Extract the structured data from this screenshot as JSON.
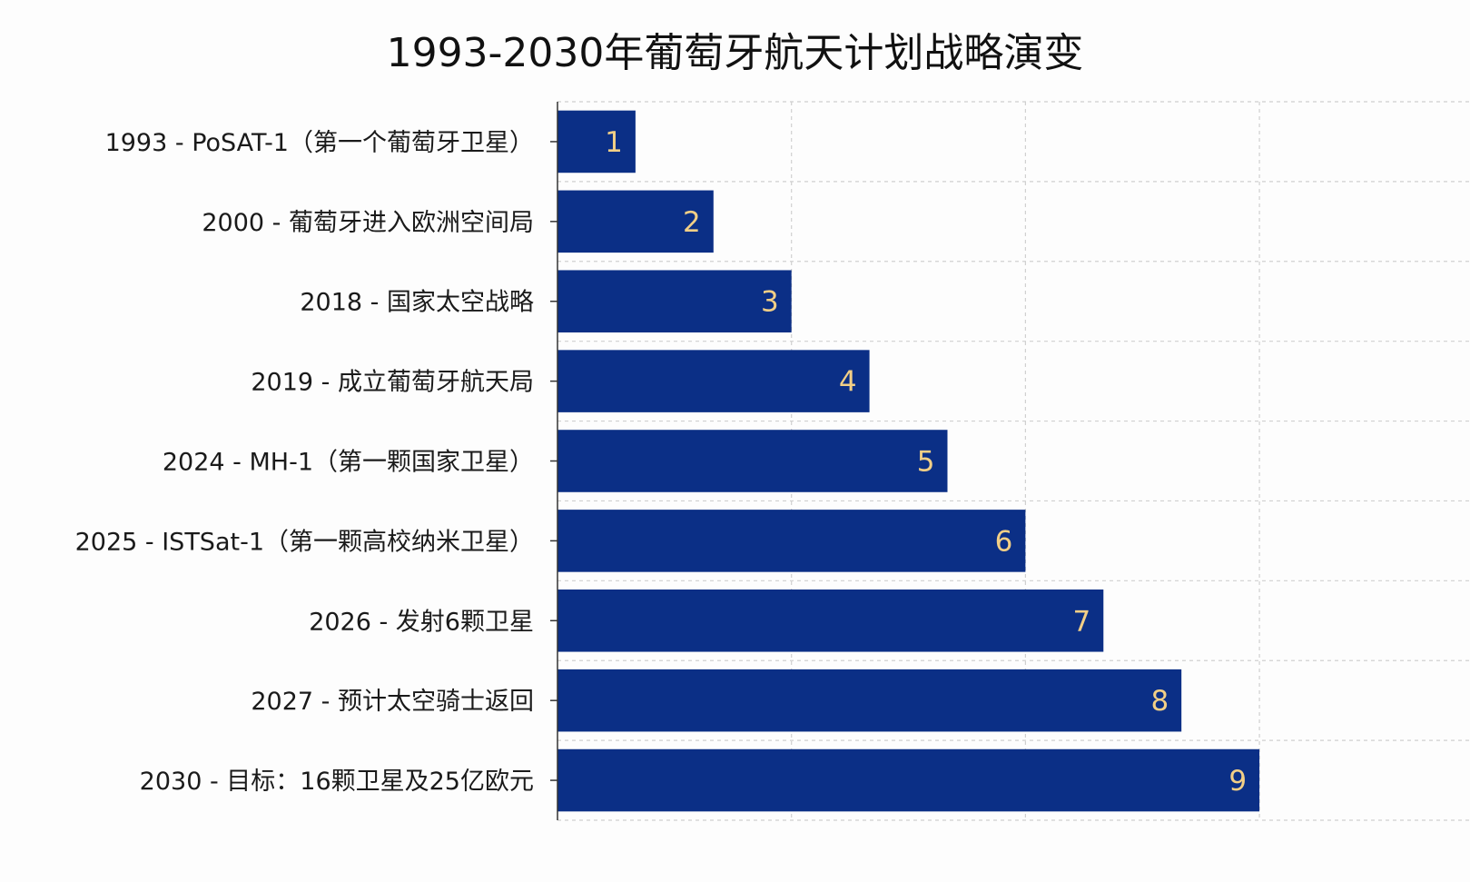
{
  "title": "1993-2030年葡萄牙航天计划战略演变",
  "chart_data": {
    "type": "bar",
    "orientation": "horizontal",
    "title": "1993-2030年葡萄牙航天计划战略演变",
    "xlabel": "",
    "ylabel": "",
    "categories": [
      "1993 - PoSAT-1（第一个葡萄牙卫星）",
      "2000 - 葡萄牙进入欧洲空间局",
      "2018 - 国家太空战略",
      "2019 - 成立葡萄牙航天局",
      "2024 - MH-1（第一颗国家卫星）",
      "2025 - ISTSat-1（第一颗高校纳米卫星）",
      "2026 - 发射6颗卫星",
      "2027 - 预计太空骑士返回",
      "2030 - 目标：16颗卫星及25亿欧元"
    ],
    "values": [
      1,
      2,
      3,
      4,
      5,
      6,
      7,
      8,
      9
    ],
    "data_labels": [
      "1",
      "2",
      "3",
      "4",
      "5",
      "6",
      "7",
      "8",
      "9"
    ],
    "xlim": [
      0,
      11.7
    ],
    "grid": true,
    "colors": {
      "bar": "#0b2f86",
      "data_label": "#f2cf86",
      "grid": "#d0d0d0",
      "axis": "#333333"
    }
  }
}
